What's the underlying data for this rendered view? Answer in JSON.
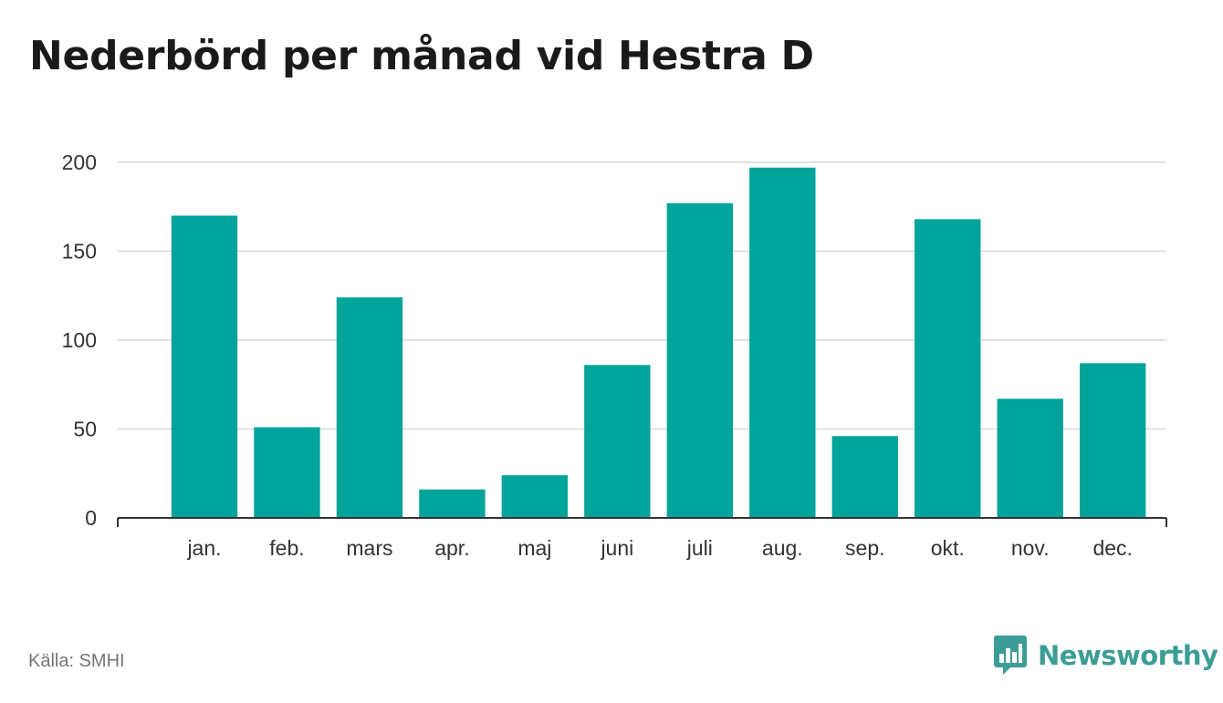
{
  "title": "Nederbörd per månad vid Hestra D",
  "source": "Källa: SMHI",
  "brand": {
    "name": "Newsworthy",
    "icon": "newsworthy-logo-icon",
    "color": "#3c9d96"
  },
  "chart_data": {
    "type": "bar",
    "categories": [
      "jan.",
      "feb.",
      "mars",
      "apr.",
      "maj",
      "juni",
      "juli",
      "aug.",
      "sep.",
      "okt.",
      "nov.",
      "dec."
    ],
    "values": [
      170,
      51,
      124,
      16,
      24,
      86,
      177,
      197,
      46,
      168,
      67,
      87
    ],
    "ylim": [
      0,
      200
    ],
    "yticks": [
      0,
      50,
      100,
      150,
      200
    ],
    "grid": true,
    "bar_color": "#00a49a",
    "xlabel": "",
    "ylabel": ""
  }
}
